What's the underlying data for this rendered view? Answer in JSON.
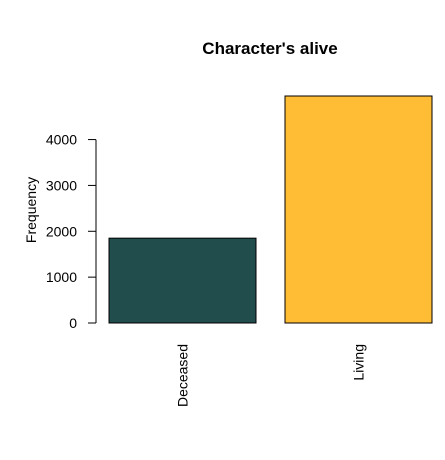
{
  "chart_data": {
    "type": "bar",
    "title": "Character's alive",
    "ylabel": "Frequency",
    "xlabel": "",
    "categories": [
      "Deceased",
      "Living"
    ],
    "values": [
      1850,
      4950
    ],
    "colors": [
      "#214d4d",
      "#ffbd36"
    ],
    "yticks": [
      0,
      1000,
      2000,
      3000,
      4000
    ],
    "ylim": [
      0,
      4950
    ],
    "grid": false,
    "legend": "none"
  }
}
